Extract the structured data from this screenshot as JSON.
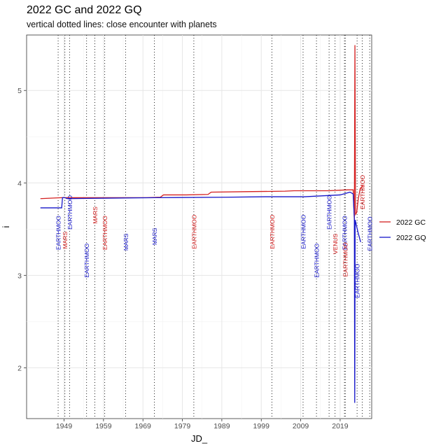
{
  "chart_data": {
    "type": "line",
    "title": "2022 GC and 2022 GQ",
    "subtitle": "vertical dotted lines: close encounter with planets",
    "xlabel": "JD_",
    "ylabel": "i",
    "xlim": [
      1939.5,
      2027.0
    ],
    "ylim": [
      1.45,
      5.6
    ],
    "x_ticks": [
      1949,
      1959,
      1969,
      1979,
      1989,
      1999,
      2009,
      2019
    ],
    "y_ticks": [
      2,
      3,
      4,
      5
    ],
    "grid": true,
    "legend": "right",
    "series": [
      {
        "name": "2022 GC",
        "color": "#d42020",
        "points": [
          [
            1943.0,
            3.83
          ],
          [
            1948.5,
            3.84
          ],
          [
            1960,
            3.84
          ],
          [
            1970,
            3.84
          ],
          [
            1973.4,
            3.845
          ],
          [
            1974.2,
            3.87
          ],
          [
            1980,
            3.87
          ],
          [
            1985.5,
            3.875
          ],
          [
            1986.3,
            3.9
          ],
          [
            1995,
            3.905
          ],
          [
            2005,
            3.91
          ],
          [
            2007.3,
            3.915
          ],
          [
            2016,
            3.915
          ],
          [
            2021,
            3.925
          ],
          [
            2022.3,
            3.925
          ],
          [
            2022.6,
            3.6
          ],
          [
            2022.75,
            5.49
          ],
          [
            2022.9,
            3.66
          ],
          [
            2023.2,
            3.68
          ],
          [
            2023.6,
            3.83
          ],
          [
            2024.1,
            3.94
          ],
          [
            2024.8,
            3.97
          ]
        ]
      },
      {
        "name": "2022 GQ",
        "color": "#1515c8",
        "points": [
          [
            1943.0,
            3.73
          ],
          [
            1948.4,
            3.73
          ],
          [
            1948.6,
            3.84
          ],
          [
            1949.2,
            3.84
          ],
          [
            1949.8,
            3.83
          ],
          [
            1960,
            3.835
          ],
          [
            1972.4,
            3.84
          ],
          [
            1990,
            3.845
          ],
          [
            2000,
            3.85
          ],
          [
            2010,
            3.85
          ],
          [
            2019,
            3.87
          ],
          [
            2021.5,
            3.9
          ],
          [
            2022.3,
            3.88
          ],
          [
            2022.6,
            3.62
          ],
          [
            2022.7,
            1.62
          ],
          [
            2022.8,
            3.6
          ],
          [
            2023.5,
            3.47
          ],
          [
            2024.2,
            3.36
          ]
        ]
      }
    ],
    "encounters": [
      {
        "year": 1947.5,
        "planet": "EARTHMOO",
        "color": "#1515c8",
        "y": 3.46
      },
      {
        "year": 1949.2,
        "planet": "MARS",
        "color": "#d42020",
        "y": 3.38
      },
      {
        "year": 1950.4,
        "planet": "EARTHMOO",
        "color": "#1515c8",
        "y": 3.68
      },
      {
        "year": 1954.7,
        "planet": "EARTHMOO",
        "color": "#1515c8",
        "y": 3.16
      },
      {
        "year": 1956.8,
        "planet": "MARS",
        "color": "#d42020",
        "y": 3.65
      },
      {
        "year": 1959.3,
        "planet": "EARTHMOO",
        "color": "#d42020",
        "y": 3.46
      },
      {
        "year": 1964.6,
        "planet": "MARS",
        "color": "#1515c8",
        "y": 3.36
      },
      {
        "year": 1971.9,
        "planet": "MARS",
        "color": "#1515c8",
        "y": 3.42
      },
      {
        "year": 1981.9,
        "planet": "EARTHMOO",
        "color": "#d42020",
        "y": 3.47
      },
      {
        "year": 2001.7,
        "planet": "EARTHMOO",
        "color": "#d42020",
        "y": 3.47
      },
      {
        "year": 2009.6,
        "planet": "EARTHMOO",
        "color": "#1515c8",
        "y": 3.47
      },
      {
        "year": 2013.0,
        "planet": "EARTHMOO",
        "color": "#1515c8",
        "y": 3.16
      },
      {
        "year": 2016.2,
        "planet": "EARTHMOO",
        "color": "#1515c8",
        "y": 3.68
      },
      {
        "year": 2017.7,
        "planet": "VENUS",
        "color": "#d42020",
        "y": 3.34
      },
      {
        "year": 2020.1,
        "planet": "EARTHMOO",
        "color": "#1515c8",
        "y": 3.46
      },
      {
        "year": 2020.3,
        "planet": "EARTHMOO",
        "color": "#d42020",
        "y": 3.17
      },
      {
        "year": 2023.3,
        "planet": "EARTHMOO",
        "color": "#1515c8",
        "y": 2.94
      },
      {
        "year": 2024.6,
        "planet": "EARTHMOO",
        "color": "#d42020",
        "y": 3.9
      },
      {
        "year": 2026.5,
        "planet": "EARTHMOO",
        "color": "#1515c8",
        "y": 3.45
      }
    ]
  }
}
